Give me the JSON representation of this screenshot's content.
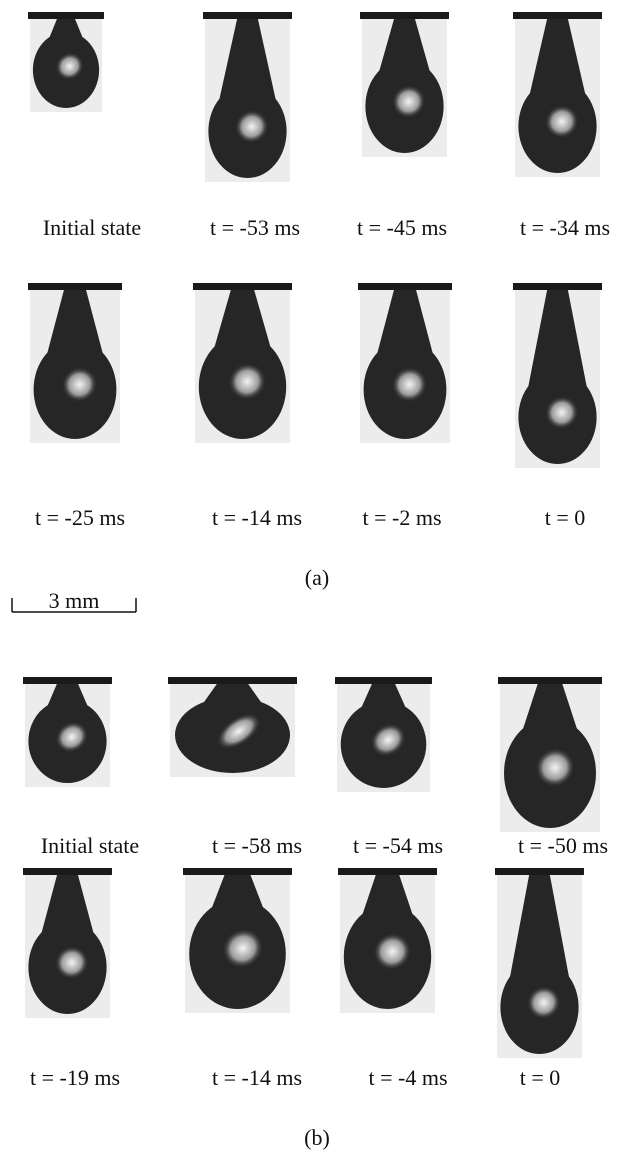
{
  "panels": [
    {
      "label": "(a)",
      "frames": [
        "Initial state",
        "t = -53 ms",
        "t = -45 ms",
        "t = -34 ms",
        "t = -25 ms",
        "t = -14 ms",
        "t = -2 ms",
        "t = 0"
      ]
    },
    {
      "label": "(b)",
      "frames": [
        "Initial state",
        "t = -58 ms",
        "t = -54 ms",
        "t = -50 ms",
        "t = -19 ms",
        "t = -14 ms",
        "t = -4 ms",
        "t = 0"
      ]
    }
  ],
  "scale_bar": "3 mm"
}
